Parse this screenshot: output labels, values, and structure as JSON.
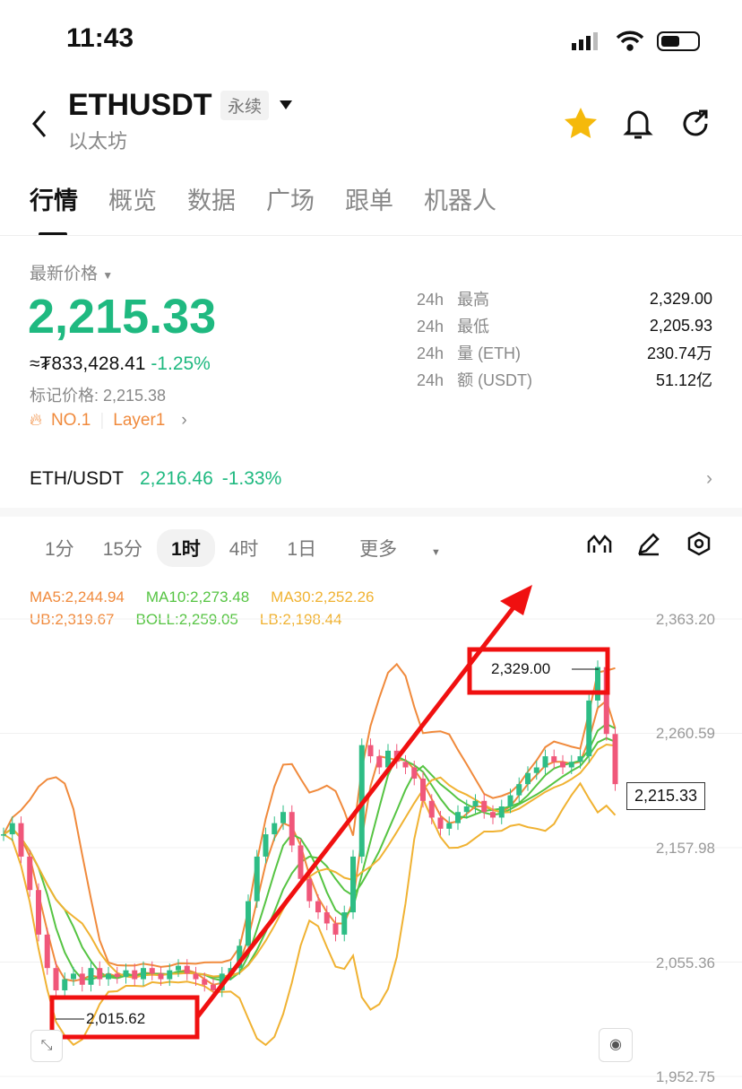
{
  "status": {
    "time": "11:43"
  },
  "header": {
    "symbol": "ETHUSDT",
    "contract_type": "永续",
    "name": "以太坊"
  },
  "tabs": [
    "行情",
    "概览",
    "数据",
    "广场",
    "跟单",
    "机器人"
  ],
  "price": {
    "label": "最新价格",
    "last": "2,215.33",
    "fiat": "≈₮833,428.41",
    "change": "-1.25%",
    "mark_price": "标记价格: 2,215.38",
    "rank": "NO.1",
    "tag": "Layer1"
  },
  "stats": [
    {
      "p": "24h",
      "k": "最高",
      "v": "2,329.00"
    },
    {
      "p": "24h",
      "k": "最低",
      "v": "2,205.93"
    },
    {
      "p": "24h",
      "k": "量 (ETH)",
      "v": "230.74万"
    },
    {
      "p": "24h",
      "k": "额 (USDT)",
      "v": "51.12亿"
    }
  ],
  "spot": {
    "pair": "ETH/USDT",
    "price": "2,216.46",
    "change": "-1.33%"
  },
  "intervals": [
    "1分",
    "15分",
    "1时",
    "4时",
    "1日",
    "更多"
  ],
  "selected_interval": "1时",
  "indicators": {
    "ma5": "MA5:2,244.94",
    "ma10": "MA10:2,273.48",
    "ma30": "MA30:2,252.26",
    "ub": "UB:2,319.67",
    "boll": "BOLL:2,259.05",
    "lb": "LB:2,198.44"
  },
  "colors": {
    "up": "#2ebd85",
    "down": "#f0577a",
    "accent": "#1fb980",
    "annotation": "#f01010"
  },
  "chart_data": {
    "type": "candlestick",
    "y_ticks": [
      "2,363.20",
      "2,260.59",
      "2,157.98",
      "2,055.36",
      "1,952.75"
    ],
    "ylim": [
      1952.75,
      2363.2
    ],
    "current_price": "2,215.33",
    "high_label": "2,329.00",
    "low_label": "2,015.62",
    "closes": [
      2170,
      2180,
      2150,
      2120,
      2080,
      2050,
      2030,
      2040,
      2045,
      2035,
      2050,
      2040,
      2045,
      2042,
      2048,
      2040,
      2050,
      2045,
      2040,
      2048,
      2052,
      2045,
      2040,
      2035,
      2030,
      2045,
      2050,
      2070,
      2110,
      2150,
      2170,
      2180,
      2190,
      2160,
      2130,
      2110,
      2100,
      2090,
      2080,
      2100,
      2150,
      2250,
      2240,
      2230,
      2245,
      2235,
      2230,
      2220,
      2200,
      2185,
      2175,
      2180,
      2190,
      2195,
      2200,
      2190,
      2185,
      2195,
      2205,
      2215,
      2225,
      2230,
      2240,
      2235,
      2230,
      2235,
      2240,
      2290,
      2320,
      2260,
      2215
    ]
  }
}
